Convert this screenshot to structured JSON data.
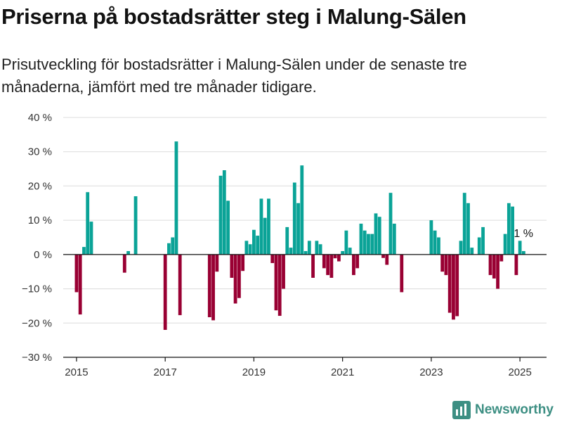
{
  "chart_data": {
    "type": "bar",
    "title": "Priserna på bostadsrätter steg i Malung-Sälen",
    "subtitle": "Prisutveckling för bostadsrätter i Malung-Sälen under de senaste tre månaderna, jämfört med tre månader tidigare.",
    "ylim": [
      -30,
      40
    ],
    "yticks": [
      -30,
      -20,
      -10,
      0,
      10,
      20,
      30,
      40
    ],
    "ytick_labels": [
      "−30 %",
      "−20 %",
      "−10 %",
      "0 %",
      "10 %",
      "20 %",
      "30 %",
      "40 %"
    ],
    "xlim": [
      2014.7,
      2025.6
    ],
    "xticks": [
      2015,
      2017,
      2019,
      2021,
      2023,
      2025
    ],
    "xtick_labels": [
      "2015",
      "2017",
      "2019",
      "2021",
      "2023",
      "2025"
    ],
    "grid": true,
    "colors": {
      "positive": "#0aa397",
      "negative": "#990033"
    },
    "annotation": {
      "text": "1 %",
      "x": 2025.08,
      "y": 1
    },
    "x": [
      2015.0,
      2015.083,
      2015.167,
      2015.25,
      2015.333,
      2015.417,
      2016.083,
      2016.167,
      2016.25,
      2016.333,
      2016.417,
      2017.0,
      2017.083,
      2017.167,
      2017.25,
      2017.333,
      2017.417,
      2018.0,
      2018.083,
      2018.167,
      2018.25,
      2018.333,
      2018.417,
      2018.5,
      2018.583,
      2018.667,
      2018.75,
      2018.833,
      2018.917,
      2019.0,
      2019.083,
      2019.167,
      2019.25,
      2019.333,
      2019.417,
      2019.5,
      2019.583,
      2019.667,
      2019.75,
      2019.833,
      2019.917,
      2020.0,
      2020.083,
      2020.167,
      2020.25,
      2020.333,
      2020.417,
      2020.5,
      2020.583,
      2020.667,
      2020.75,
      2020.833,
      2020.917,
      2021.0,
      2021.083,
      2021.167,
      2021.25,
      2021.333,
      2021.417,
      2021.5,
      2021.583,
      2021.667,
      2021.75,
      2021.833,
      2021.917,
      2022.0,
      2022.083,
      2022.167,
      2022.25,
      2022.333,
      2023.0,
      2023.083,
      2023.167,
      2023.25,
      2023.333,
      2023.417,
      2023.5,
      2023.583,
      2023.667,
      2023.75,
      2023.833,
      2023.917,
      2024.0,
      2024.083,
      2024.167,
      2024.25,
      2024.333,
      2024.417,
      2024.5,
      2024.583,
      2024.667,
      2024.75,
      2024.833,
      2024.917,
      2025.0,
      2025.083
    ],
    "values": [
      -11,
      -17.5,
      2.2,
      18.2,
      9.6,
      0,
      -5.3,
      1,
      0,
      17,
      0,
      -22,
      3.3,
      5,
      33,
      -17.7,
      0,
      -18.3,
      -19.2,
      -5,
      23,
      24.6,
      15.7,
      -6.8,
      -14.3,
      -12.7,
      -4.8,
      4,
      3,
      7.2,
      5.5,
      16.3,
      10.7,
      16.3,
      -2.5,
      -16.3,
      -17.9,
      -10,
      8,
      2,
      21,
      15,
      26,
      1,
      4,
      -6.8,
      4,
      3,
      -4,
      -6,
      -6.8,
      -1.1,
      -2,
      1,
      7,
      2,
      -6,
      -4,
      9,
      7,
      6,
      6,
      12,
      11,
      -1,
      -3,
      18,
      9,
      0,
      -11,
      10,
      7,
      5,
      -5,
      -6,
      -17,
      -19,
      -18,
      4,
      18,
      15,
      2,
      0,
      5,
      8,
      0,
      -6,
      -7,
      -10,
      -2,
      6,
      15,
      14,
      -6,
      4,
      1
    ]
  },
  "brand": {
    "name": "Newsworthy",
    "color": "#3d8f83"
  }
}
